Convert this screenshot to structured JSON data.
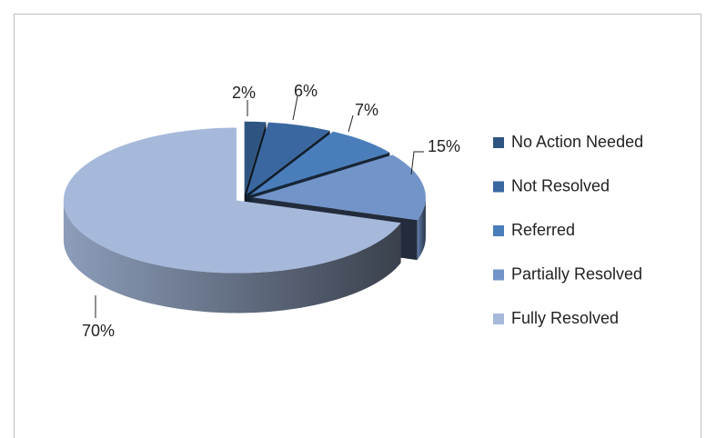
{
  "chart_data": {
    "type": "pie3d",
    "categories": [
      "No Action Needed",
      "Not Resolved",
      "Referred",
      "Partially Resolved",
      "Fully Resolved"
    ],
    "values": [
      2,
      6,
      7,
      15,
      70
    ],
    "value_labels": [
      "2%",
      "6%",
      "7%",
      "15%",
      "70%"
    ],
    "colors": [
      "#2e5582",
      "#3a67a0",
      "#4a7ebb",
      "#7394c9",
      "#a6b9db"
    ],
    "legend": "right"
  }
}
